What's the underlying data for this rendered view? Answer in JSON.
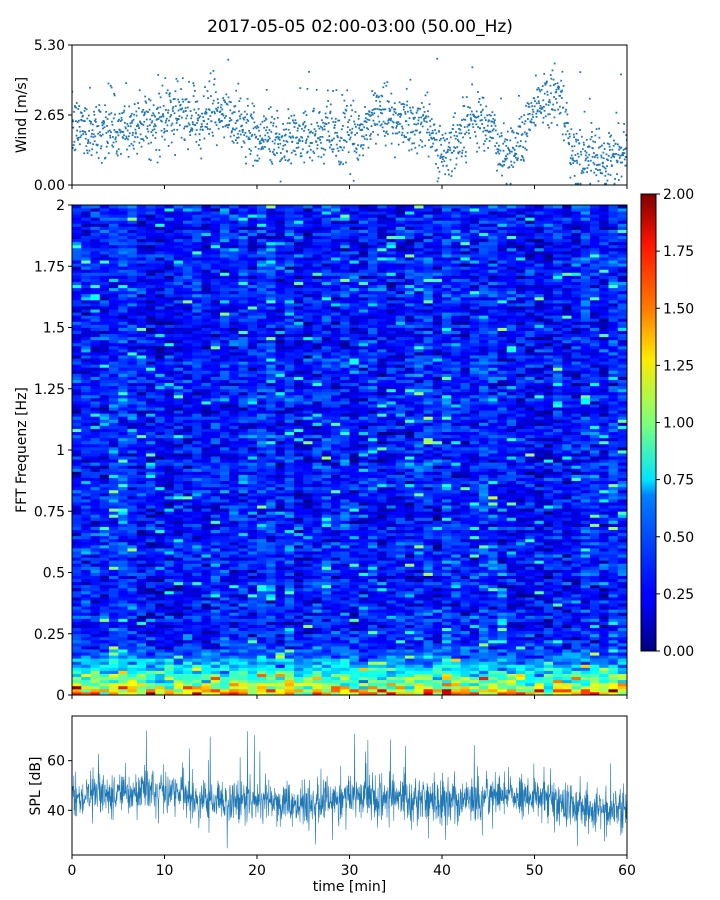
{
  "figure": {
    "title": "2017-05-05 02:00-03:00 (50.00_Hz)"
  },
  "chart_data": [
    {
      "type": "scatter",
      "panel": "wind",
      "ylabel": "Wind [m/s]",
      "xlim": [
        0,
        60
      ],
      "ylim": [
        0,
        5.3
      ],
      "yticks": [
        0,
        2.65,
        5.3
      ],
      "ytick_labels": [
        "0.00",
        "2.65",
        "5.30"
      ],
      "xticks": [
        0,
        10,
        20,
        30,
        40,
        50,
        60
      ],
      "marker_color": "#1f77b4",
      "profile": {
        "t": [
          0,
          1,
          2,
          3,
          4,
          5,
          6,
          7,
          8,
          9,
          10,
          11,
          12,
          13,
          14,
          15,
          16,
          17,
          18,
          19,
          20,
          21,
          22,
          23,
          24,
          25,
          26,
          27,
          28,
          29,
          30,
          31,
          32,
          33,
          34,
          35,
          36,
          37,
          38,
          39,
          40,
          41,
          42,
          43,
          44,
          45,
          46,
          47,
          48,
          49,
          50,
          51,
          52,
          53,
          54,
          55,
          56,
          57,
          58,
          59,
          60
        ],
        "mean": [
          2.0,
          2.3,
          2.0,
          2.1,
          2.2,
          2.0,
          2.1,
          2.3,
          2.4,
          2.2,
          2.5,
          2.6,
          2.7,
          2.4,
          2.6,
          2.8,
          2.6,
          2.5,
          2.3,
          2.0,
          1.8,
          2.0,
          1.7,
          1.6,
          1.9,
          1.8,
          2.0,
          1.9,
          2.0,
          1.8,
          1.9,
          1.7,
          2.3,
          2.8,
          2.6,
          2.3,
          2.4,
          2.2,
          2.5,
          2.0,
          1.0,
          1.3,
          2.0,
          2.4,
          2.6,
          2.5,
          1.4,
          1.1,
          1.5,
          2.2,
          3.0,
          3.3,
          3.5,
          3.0,
          1.0,
          1.0,
          1.1,
          1.0,
          1.2,
          1.0,
          1.4
        ],
        "spread": 0.55
      },
      "n_points": 1800
    },
    {
      "type": "heatmap",
      "panel": "spectrogram",
      "ylabel": "FFT Frequenz [Hz]",
      "xlim": [
        0,
        60
      ],
      "ylim": [
        0,
        2
      ],
      "yticks": [
        0,
        0.25,
        0.5,
        0.75,
        1,
        1.25,
        1.5,
        1.75,
        2
      ],
      "ytick_labels": [
        "0",
        "0.25",
        "0.5",
        "0.75",
        "1",
        "1.25",
        "1.5",
        "1.75",
        "2"
      ],
      "xticks": [
        0,
        10,
        20,
        30,
        40,
        50,
        60
      ],
      "colormap": "jet",
      "clim": [
        0,
        2
      ],
      "n_time_bins": 60,
      "n_freq_bins": 160,
      "low_freq_boost": 1.4,
      "baseline_level": 0.3,
      "colorbar": {
        "ticks": [
          0,
          0.25,
          0.5,
          0.75,
          1,
          1.25,
          1.5,
          1.75,
          2
        ],
        "tick_labels": [
          "0.00",
          "0.25",
          "0.50",
          "0.75",
          "1.00",
          "1.25",
          "1.50",
          "1.75",
          "2.00"
        ]
      }
    },
    {
      "type": "line",
      "panel": "spl",
      "xlabel": "time [min]",
      "ylabel": "SPL [dB]",
      "xlim": [
        0,
        60
      ],
      "ylim": [
        22,
        78
      ],
      "yticks": [
        40,
        60
      ],
      "ytick_labels": [
        "40",
        "60"
      ],
      "xticks": [
        0,
        10,
        20,
        30,
        40,
        50,
        60
      ],
      "xtick_labels": [
        "0",
        "10",
        "20",
        "30",
        "40",
        "50",
        "60"
      ],
      "line_color": "#1f77b4",
      "profile": {
        "t": [
          0,
          5,
          10,
          15,
          20,
          25,
          30,
          35,
          40,
          45,
          50,
          52,
          54,
          56,
          60
        ],
        "mean": [
          45,
          47,
          48,
          43,
          44,
          42,
          46,
          45,
          44,
          45,
          45,
          46,
          40,
          40,
          41
        ],
        "spread": 6
      },
      "n_points": 1800
    }
  ]
}
